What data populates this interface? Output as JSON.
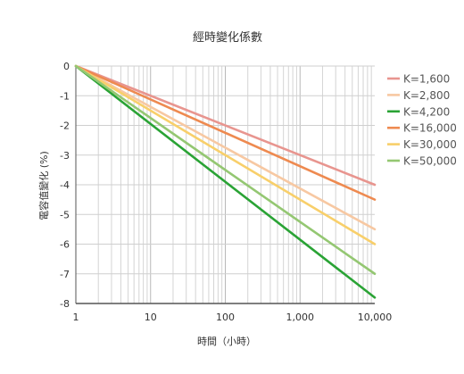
{
  "chart_data": {
    "type": "line",
    "title": "經時變化係數",
    "xlabel": "時間（小時）",
    "ylabel": "電容值變化 (%)",
    "x_scale": "log",
    "xlim": [
      1,
      10000
    ],
    "ylim": [
      -8,
      0
    ],
    "x_ticks": [
      1,
      10,
      100,
      1000,
      10000
    ],
    "x_tick_labels": [
      "1",
      "10",
      "100",
      "1,000",
      "10,000"
    ],
    "y_ticks": [
      0,
      -1,
      -2,
      -3,
      -4,
      -5,
      -6,
      -7,
      -8
    ],
    "y_tick_labels": [
      "0",
      "-1",
      "-2",
      "-3",
      "-4",
      "-5",
      "-6",
      "-7",
      "-8"
    ],
    "grid": true,
    "legend_position": "right",
    "series": [
      {
        "name": "K=1,600",
        "color": "#e8958f",
        "x": [
          1,
          10000
        ],
        "y": [
          0,
          -4.0
        ]
      },
      {
        "name": "K=2,800",
        "color": "#f7c8a2",
        "x": [
          1,
          10000
        ],
        "y": [
          0,
          -5.5
        ]
      },
      {
        "name": "K=4,200",
        "color": "#2aa335",
        "x": [
          1,
          10000
        ],
        "y": [
          0,
          -7.8
        ]
      },
      {
        "name": "K=16,000",
        "color": "#ee8a50",
        "x": [
          1,
          10000
        ],
        "y": [
          0,
          -4.5
        ]
      },
      {
        "name": "K=30,000",
        "color": "#f8cf6a",
        "x": [
          1,
          10000
        ],
        "y": [
          0,
          -6.0
        ]
      },
      {
        "name": "K=50,000",
        "color": "#94c772",
        "x": [
          1,
          10000
        ],
        "y": [
          0,
          -7.0
        ]
      }
    ]
  }
}
